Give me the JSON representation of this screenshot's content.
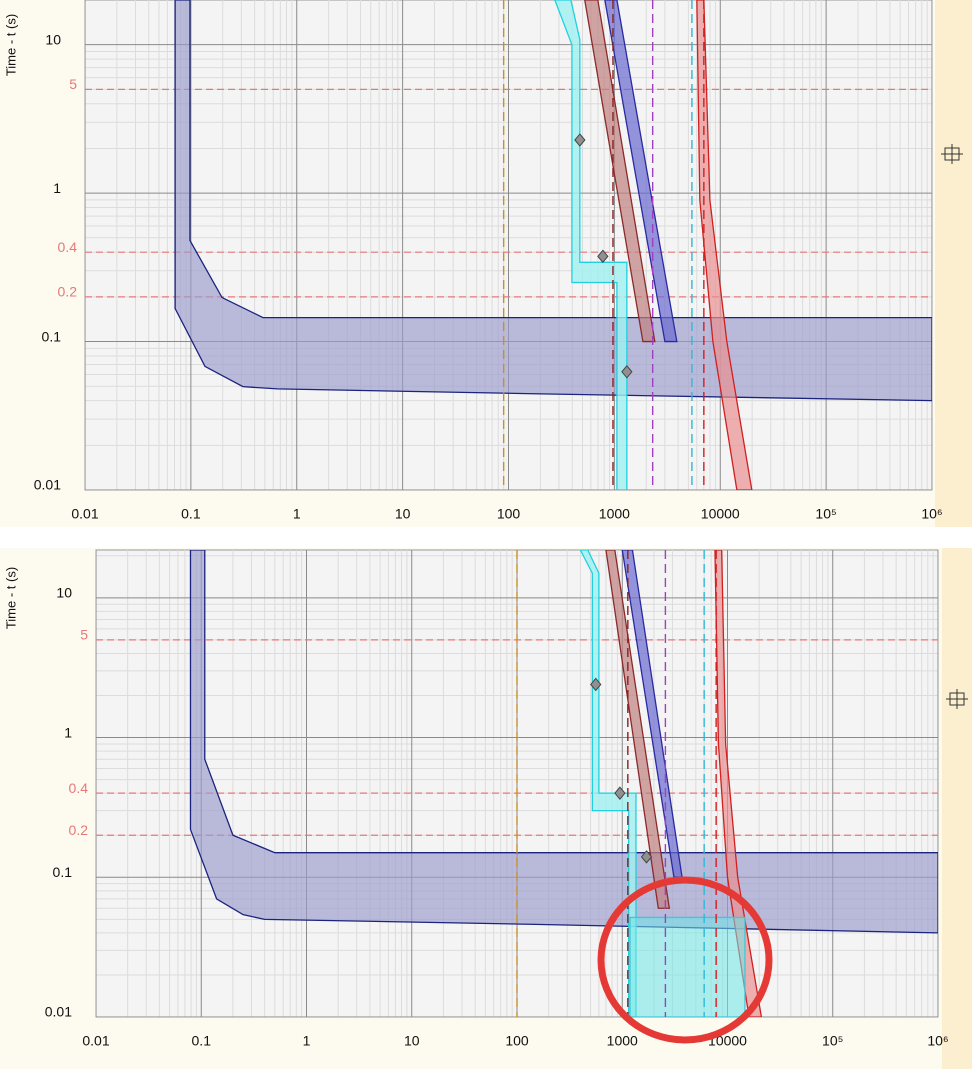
{
  "chart_data": [
    {
      "type": "line",
      "y_label": "Time - t (s)",
      "xscale": "log",
      "yscale": "log",
      "xlim": [
        0.01,
        1000000
      ],
      "ylim": [
        0.01,
        20
      ],
      "xticks": [
        0.01,
        0.1,
        1,
        10,
        100,
        1000,
        10000,
        {
          "value": 100000,
          "label": "10⁵"
        },
        {
          "value": 1000000,
          "label": "10⁶"
        }
      ],
      "yticks": [
        0.01,
        0.1,
        1,
        10
      ],
      "grid": true,
      "minor_grid": true,
      "ref_lines": {
        "color": "#e87878",
        "values": [
          5,
          0.4,
          0.2
        ]
      },
      "vlines": [
        {
          "color": "#c8902a",
          "value": 90
        },
        {
          "color": "#8b2020",
          "value": 970
        },
        {
          "color": "#a040c0",
          "value": 2300
        },
        {
          "color": "#30b8d8",
          "value": 5400
        },
        {
          "color": "#d02020",
          "value": 7000
        }
      ],
      "bands": [
        {
          "stroke": "#1a237e",
          "fill": "#9a9acc",
          "opacity": 0.65,
          "x": [
            0.071,
            0.098,
            0.098,
            0.197,
            0.48,
            1000000,
            1000000,
            149,
            0.66,
            0.31,
            0.136,
            0.071
          ],
          "y": [
            20,
            20,
            0.48,
            0.198,
            0.145,
            0.145,
            0.04,
            0.0446,
            0.048,
            0.0497,
            0.068,
            0.167
          ]
        },
        {
          "stroke": "#20d0e0",
          "fill": "#a0f0f0",
          "opacity": 0.8,
          "x": [
            274,
            388,
            472,
            472,
            1312,
            1312,
            1057,
            1057,
            397,
            397
          ],
          "y": [
            20,
            20,
            10.8,
            0.342,
            0.342,
            0.01,
            0.01,
            0.25,
            0.25,
            10
          ]
        },
        {
          "stroke": "#8b2a2a",
          "fill": "#c08080",
          "opacity": 0.7,
          "x": [
            525,
            698,
            2410,
            1860
          ],
          "y": [
            20,
            20,
            0.1,
            0.1
          ]
        },
        {
          "stroke": "#2a2aa0",
          "fill": "#6a6ad0",
          "opacity": 0.7,
          "x": [
            813,
            1057,
            3890,
            3000
          ],
          "y": [
            20,
            20,
            0.1,
            0.1
          ]
        },
        {
          "stroke": "#d02020",
          "fill": "#e89090",
          "opacity": 0.7,
          "x": [
            6010,
            7000,
            7980,
            11540,
            19870,
            14350,
            8520,
            6410
          ],
          "y": [
            20,
            20,
            0.9,
            0.1,
            0.01,
            0.01,
            0.1,
            0.9
          ]
        }
      ],
      "points": {
        "color": "#909090",
        "x": [
          472,
          778,
          1312
        ],
        "y": [
          2.28,
          0.375,
          0.0626
        ]
      }
    },
    {
      "type": "line",
      "y_label": "Time - t (s)",
      "xscale": "log",
      "yscale": "log",
      "xlim": [
        0.01,
        1000000
      ],
      "ylim": [
        0.01,
        22
      ],
      "xticks": [
        0.01,
        0.1,
        1,
        10,
        100,
        1000,
        10000,
        {
          "value": 100000,
          "label": "10⁵"
        },
        {
          "value": 1000000,
          "label": "10⁶"
        }
      ],
      "yticks": [
        0.01,
        0.1,
        1,
        10
      ],
      "grid": true,
      "minor_grid": true,
      "ref_lines": {
        "color": "#e87878",
        "values": [
          5,
          0.4,
          0.2
        ]
      },
      "vlines": [
        {
          "color": "#c8902a",
          "value": 100
        },
        {
          "color": "#8b2020",
          "value": 1130
        },
        {
          "color": "#a040c0",
          "value": 2570
        },
        {
          "color": "#30b8d8",
          "value": 6000
        },
        {
          "color": "#d02020",
          "value": 7800
        }
      ],
      "bands": [
        {
          "stroke": "#1a237e",
          "fill": "#9a9acc",
          "opacity": 0.65,
          "x": [
            0.079,
            0.108,
            0.108,
            0.2,
            0.5,
            1000000,
            1000000,
            150,
            0.4,
            0.25,
            0.14,
            0.079
          ],
          "y": [
            22,
            22,
            0.7,
            0.2,
            0.15,
            0.15,
            0.04,
            0.046,
            0.05,
            0.054,
            0.07,
            0.22
          ]
        },
        {
          "stroke": "#20d0e0",
          "fill": "#a0f0f0",
          "opacity": 0.8,
          "x": [
            400,
            470,
            600,
            600,
            1350,
            1350,
            1150,
            1150,
            520,
            520
          ],
          "y": [
            22,
            22,
            15,
            0.4,
            0.4,
            0.01,
            0.01,
            0.3,
            0.3,
            15
          ]
        },
        {
          "stroke": "#8b2a2a",
          "fill": "#c08080",
          "opacity": 0.7,
          "x": [
            700,
            850,
            2800,
            2200
          ],
          "y": [
            22,
            22,
            0.06,
            0.06
          ]
        },
        {
          "stroke": "#2a2aa0",
          "fill": "#6a6ad0",
          "opacity": 0.7,
          "x": [
            1000,
            1250,
            3700,
            3100
          ],
          "y": [
            22,
            22,
            0.1,
            0.1
          ]
        },
        {
          "stroke": "#d02020",
          "fill": "#e89090",
          "opacity": 0.7,
          "x": [
            7600,
            8800,
            9600,
            12500,
            21000,
            16000,
            10000,
            8200
          ],
          "y": [
            22,
            22,
            0.9,
            0.1,
            0.01,
            0.01,
            0.1,
            0.9
          ]
        },
        {
          "stroke": "#40c8d8",
          "fill": "#70e8e8",
          "opacity": 0.55,
          "x": [
            1185,
            14650,
            14650,
            1185
          ],
          "y": [
            0.0516,
            0.0516,
            0.01,
            0.01
          ]
        }
      ],
      "points": {
        "color": "#909090",
        "x": [
          560,
          950,
          1700
        ],
        "y": [
          2.4,
          0.4,
          0.14
        ]
      }
    }
  ]
}
